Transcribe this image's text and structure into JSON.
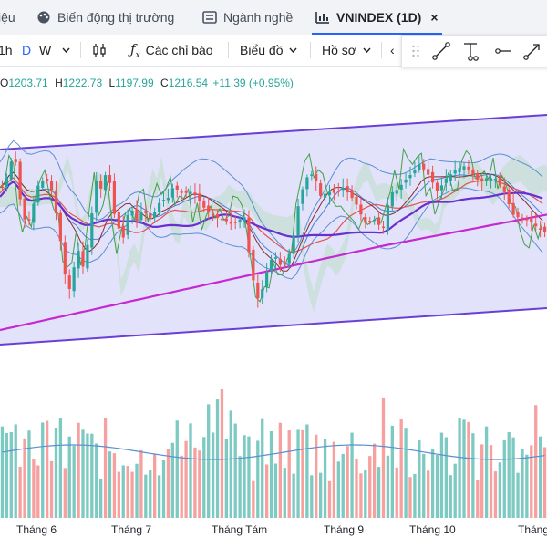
{
  "tabs": [
    {
      "label": "iệu",
      "icon": "none"
    },
    {
      "label": "Biến động thị trường",
      "icon": "palette-icon"
    },
    {
      "label": "Ngành nghề",
      "icon": "list-icon"
    },
    {
      "label": "VNINDEX (1D)",
      "icon": "chart-icon",
      "active": true,
      "close": "×"
    }
  ],
  "toolbar": {
    "intervals": [
      "1h",
      "D",
      "W"
    ],
    "active_interval": "D",
    "indicators_label": "Các chỉ báo",
    "chart_label": "Biểu đồ",
    "profile_label": "Hồ sơ"
  },
  "drawing_tools": [
    "drag-handle-icon",
    "trend-line-icon",
    "vertical-measure-icon",
    "horizontal-ray-icon",
    "arrow-line-icon"
  ],
  "ohlc": {
    "o_label": "O",
    "o": "1203.71",
    "h_label": "H",
    "h": "1222.73",
    "l_label": "L",
    "l": "1197.99",
    "c_label": "C",
    "c": "1216.54",
    "change": "+11.39 (+0.95%)"
  },
  "chart_data": {
    "type": "candlestick",
    "x_labels": [
      "Tháng 6",
      "Tháng 7",
      "Tháng Tám",
      "Tháng 9",
      "Tháng 10",
      "Tháng"
    ],
    "up_color": "#26a69a",
    "down_color": "#ef5350",
    "channel_color": "#6a3fd6",
    "volume_ma_color": "#5b8fd1"
  }
}
